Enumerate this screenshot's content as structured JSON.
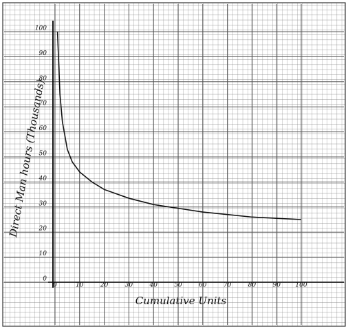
{
  "chart_data": {
    "type": "line",
    "y_label": "Direct Man hours (Thousands)",
    "x_label": "Cumulative Units",
    "x": [
      1,
      2,
      3,
      5,
      7,
      10,
      15,
      20,
      30,
      40,
      50,
      60,
      70,
      80,
      90,
      100
    ],
    "series": [
      {
        "color": "#111111",
        "values": [
          100,
          75,
          64,
          53,
          48,
          44,
          40,
          37,
          33.5,
          31,
          29.5,
          28,
          27,
          26,
          25.5,
          25
        ]
      }
    ],
    "xlim": [
      0,
      100
    ],
    "xticks": [
      0,
      10,
      20,
      30,
      40,
      50,
      60,
      70,
      80,
      90,
      100
    ],
    "ylim": [
      0,
      100
    ],
    "yticks": [
      0,
      10,
      20,
      30,
      40,
      50,
      60,
      70,
      80,
      90,
      100
    ],
    "grid": true
  }
}
